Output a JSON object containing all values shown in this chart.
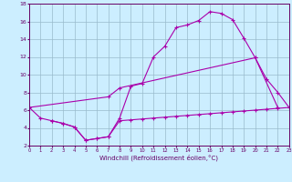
{
  "xlabel": "Windchill (Refroidissement éolien,°C)",
  "bg_color": "#cceeff",
  "line_color": "#aa00aa",
  "grid_color": "#99bbcc",
  "curve1_x": [
    0,
    1,
    2,
    3,
    4,
    5,
    6,
    7,
    8,
    9,
    10,
    11,
    12,
    13,
    14,
    15,
    16,
    17,
    18,
    19,
    20,
    21,
    22,
    23
  ],
  "curve1_y": [
    6.3,
    5.1,
    4.8,
    4.5,
    4.1,
    2.6,
    2.8,
    3.0,
    5.1,
    8.7,
    9.0,
    12.0,
    13.2,
    15.3,
    15.6,
    16.1,
    17.1,
    16.9,
    16.2,
    14.1,
    11.9,
    9.5,
    8.0,
    6.3
  ],
  "curve2_x": [
    0,
    7,
    8,
    20,
    22
  ],
  "curve2_y": [
    6.3,
    7.5,
    8.5,
    11.9,
    6.3
  ],
  "curve3_x": [
    2,
    3,
    4,
    5,
    6,
    7,
    8,
    9,
    10,
    11,
    12,
    13,
    14,
    15,
    16,
    17,
    18,
    19,
    20,
    21,
    22,
    23
  ],
  "curve3_y": [
    4.8,
    4.5,
    4.1,
    2.6,
    2.8,
    3.0,
    4.8,
    4.9,
    5.0,
    5.1,
    5.2,
    5.3,
    5.4,
    5.5,
    5.6,
    5.7,
    5.8,
    5.9,
    6.0,
    6.1,
    6.2,
    6.3
  ],
  "xlim": [
    0,
    23
  ],
  "ylim": [
    2,
    18
  ],
  "xticks": [
    0,
    1,
    2,
    3,
    4,
    5,
    6,
    7,
    8,
    9,
    10,
    11,
    12,
    13,
    14,
    15,
    16,
    17,
    18,
    19,
    20,
    21,
    22,
    23
  ],
  "yticks": [
    2,
    4,
    6,
    8,
    10,
    12,
    14,
    16,
    18
  ],
  "marker": "+"
}
